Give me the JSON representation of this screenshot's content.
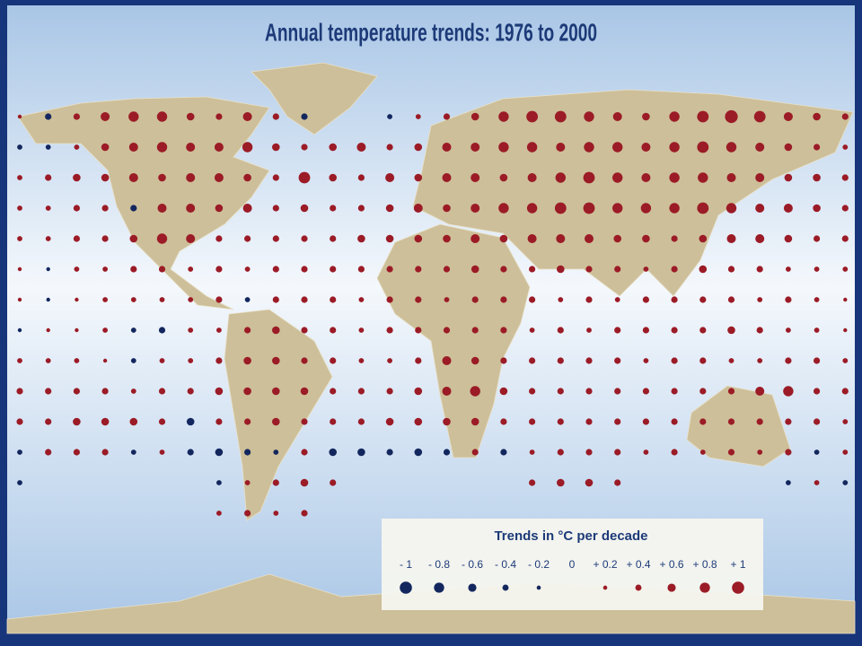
{
  "title": "Annual temperature trends:  1976 to 2000",
  "trend_grid": {
    "rows": [
      [
        0.1,
        -0.3,
        0.3,
        0.5,
        0.6,
        0.6,
        0.4,
        0.3,
        0.5,
        0.3,
        -0.3,
        null,
        null,
        -0.2,
        0.2,
        0.3,
        0.4,
        0.6,
        0.7,
        0.7,
        0.6,
        0.5,
        0.4,
        0.6,
        0.7,
        0.8,
        0.7,
        0.5,
        0.4,
        0.3
      ],
      [
        -0.2,
        -0.2,
        0.2,
        0.4,
        0.5,
        0.6,
        0.5,
        0.5,
        0.6,
        0.4,
        0.3,
        0.4,
        0.5,
        0.3,
        0.4,
        0.5,
        0.5,
        0.6,
        0.6,
        0.5,
        0.6,
        0.6,
        0.5,
        0.6,
        0.7,
        0.6,
        0.5,
        0.4,
        0.3,
        0.2
      ],
      [
        0.2,
        0.3,
        0.4,
        0.4,
        0.5,
        0.4,
        0.5,
        0.5,
        0.4,
        0.3,
        0.7,
        0.4,
        0.3,
        0.5,
        0.4,
        0.5,
        0.5,
        0.4,
        0.5,
        0.6,
        0.7,
        0.6,
        0.5,
        0.6,
        0.6,
        0.5,
        0.5,
        0.4,
        0.4,
        0.3
      ],
      [
        0.2,
        0.2,
        0.3,
        0.3,
        -0.3,
        0.5,
        0.5,
        0.4,
        0.5,
        0.3,
        0.4,
        0.3,
        0.3,
        0.4,
        0.5,
        0.4,
        0.5,
        0.6,
        0.6,
        0.7,
        0.7,
        0.6,
        0.6,
        0.6,
        0.7,
        0.6,
        0.5,
        0.5,
        0.4,
        0.3
      ],
      [
        0.2,
        0.2,
        0.3,
        0.3,
        0.4,
        0.6,
        0.5,
        0.3,
        0.3,
        0.3,
        0.3,
        0.3,
        0.4,
        0.4,
        0.4,
        0.4,
        0.5,
        0.4,
        0.5,
        0.5,
        0.5,
        0.4,
        0.4,
        0.3,
        0.4,
        0.5,
        0.5,
        0.4,
        0.3,
        0.3
      ],
      [
        0.1,
        -0.1,
        0.2,
        0.2,
        0.3,
        0.3,
        0.2,
        0.3,
        0.2,
        0.3,
        0.3,
        0.3,
        0.3,
        0.3,
        0.3,
        0.3,
        0.4,
        0.3,
        0.3,
        0.4,
        0.3,
        0.3,
        0.2,
        0.3,
        0.4,
        0.3,
        0.3,
        0.2,
        0.2,
        0.2
      ],
      [
        0.1,
        -0.1,
        0.1,
        0.2,
        0.2,
        0.2,
        0.2,
        0.3,
        -0.2,
        0.3,
        0.3,
        0.3,
        0.2,
        0.3,
        0.3,
        0.2,
        0.3,
        0.3,
        0.3,
        0.2,
        0.3,
        0.2,
        0.3,
        0.3,
        0.3,
        0.3,
        0.2,
        0.3,
        0.2,
        0.1
      ],
      [
        -0.1,
        0.1,
        0.1,
        0.2,
        -0.2,
        -0.3,
        0.2,
        0.2,
        0.3,
        0.4,
        0.3,
        0.3,
        0.2,
        0.3,
        0.3,
        0.3,
        0.3,
        0.3,
        0.2,
        0.3,
        0.2,
        0.3,
        0.3,
        0.3,
        0.3,
        0.4,
        0.3,
        0.2,
        0.2,
        0.1
      ],
      [
        0.2,
        0.2,
        0.2,
        0.1,
        -0.2,
        0.2,
        0.2,
        0.3,
        0.4,
        0.4,
        0.3,
        0.3,
        0.2,
        0.2,
        0.3,
        0.5,
        0.4,
        0.3,
        0.3,
        0.3,
        0.3,
        0.3,
        0.2,
        0.3,
        0.3,
        0.2,
        0.2,
        0.3,
        0.3,
        0.2
      ],
      [
        0.3,
        0.3,
        0.3,
        0.3,
        0.2,
        0.3,
        0.3,
        0.4,
        0.4,
        0.4,
        0.4,
        0.3,
        0.3,
        0.3,
        0.4,
        0.5,
        0.6,
        0.4,
        0.3,
        0.3,
        0.3,
        0.3,
        0.3,
        0.3,
        0.3,
        0.3,
        0.5,
        0.6,
        0.3,
        0.3
      ],
      [
        0.3,
        0.3,
        0.4,
        0.4,
        0.4,
        0.3,
        -0.4,
        0.3,
        0.3,
        0.4,
        0.3,
        0.3,
        0.3,
        0.4,
        0.4,
        0.4,
        0.4,
        0.3,
        0.3,
        0.3,
        0.3,
        0.3,
        0.3,
        0.3,
        0.3,
        0.3,
        0.3,
        0.3,
        0.3,
        0.2
      ],
      [
        -0.2,
        0.3,
        0.3,
        0.3,
        -0.2,
        0.2,
        -0.3,
        -0.4,
        -0.3,
        -0.2,
        0.3,
        -0.4,
        -0.4,
        -0.3,
        -0.4,
        -0.3,
        0.3,
        -0.3,
        0.2,
        0.3,
        0.3,
        0.3,
        0.2,
        0.3,
        0.2,
        0.3,
        0.2,
        0.3,
        -0.2,
        0.2
      ],
      [
        -0.2,
        null,
        null,
        null,
        null,
        null,
        null,
        -0.2,
        0.2,
        0.3,
        0.4,
        0.3,
        null,
        null,
        null,
        null,
        null,
        null,
        0.3,
        0.4,
        0.4,
        0.3,
        null,
        null,
        null,
        null,
        null,
        -0.2,
        0.2,
        -0.2
      ],
      [
        null,
        null,
        null,
        null,
        null,
        null,
        null,
        0.2,
        0.3,
        0.2,
        0.3,
        null,
        null,
        null,
        null,
        null,
        null,
        null,
        null,
        null,
        null,
        null,
        null,
        null,
        null,
        null,
        null,
        null,
        null,
        null
      ]
    ]
  },
  "legend": {
    "title": "Trends in °C per decade",
    "items": [
      {
        "value": -1,
        "label": "- 1"
      },
      {
        "value": -0.8,
        "label": "- 0.8"
      },
      {
        "value": -0.6,
        "label": "- 0.6"
      },
      {
        "value": -0.4,
        "label": "- 0.4"
      },
      {
        "value": -0.2,
        "label": "- 0.2"
      },
      0,
      {
        "value": 0.2,
        "label": "+ 0.2"
      },
      {
        "value": 0.4,
        "label": "+ 0.4"
      },
      {
        "value": 0.6,
        "label": "+ 0.6"
      },
      {
        "value": 0.8,
        "label": "+ 0.8"
      },
      {
        "value": 1,
        "label": "+ 1"
      }
    ]
  }
}
